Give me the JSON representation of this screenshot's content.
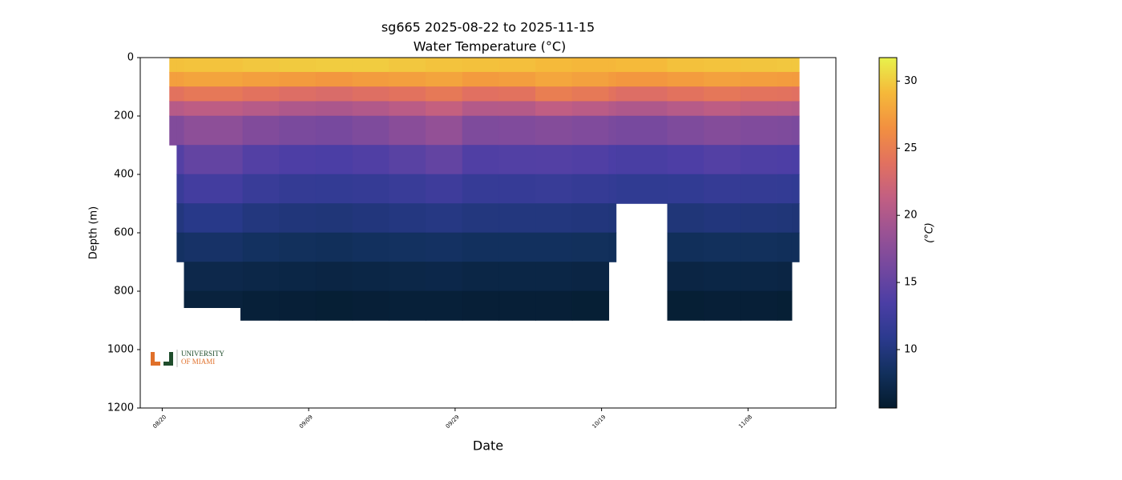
{
  "chart_data": {
    "type": "heatmap",
    "title": "sg665 2025-08-22 to 2025-11-15",
    "subtitle": "Water Temperature (°C)",
    "x_label": "Date",
    "y_label": "Depth (m)",
    "colorbar_label": "(°C)",
    "xlim": [
      "08/17",
      "11/20"
    ],
    "xticks": [
      "08/20",
      "09/09",
      "09/29",
      "10/19",
      "11/08"
    ],
    "ylim": [
      0,
      1200
    ],
    "y_inverted": true,
    "yticks": [
      0,
      200,
      400,
      600,
      800,
      1000,
      1200
    ],
    "clim": [
      5.65,
      31.75
    ],
    "cticks": [
      10,
      15,
      20,
      25,
      30
    ],
    "colormap": [
      "#041b2d",
      "#12305d",
      "#2b3a8e",
      "#4b3ea5",
      "#74489f",
      "#9a5294",
      "#c25f82",
      "#e2715f",
      "#f29040",
      "#f5b93a",
      "#e8f24c"
    ],
    "x_edges": [
      "08/21",
      "08/22",
      "08/23",
      "08/31",
      "09/05",
      "09/10",
      "09/15",
      "09/20",
      "09/25",
      "09/30",
      "10/05",
      "10/10",
      "10/15",
      "10/20",
      "10/21",
      "10/28",
      "11/02",
      "11/07",
      "11/12",
      "11/14",
      "11/15"
    ],
    "depth_edges": [
      0,
      50,
      100,
      150,
      200,
      300,
      400,
      500,
      600,
      700,
      800,
      900
    ],
    "values": [
      [
        29.5,
        27.5,
        24,
        20.5,
        17,
        null,
        null,
        null,
        null,
        null,
        null
      ],
      [
        29.5,
        27.5,
        24,
        20.5,
        17,
        14,
        12,
        10,
        8.5,
        null,
        null
      ],
      [
        29.6,
        27.8,
        24.5,
        21,
        17.8,
        15,
        12.8,
        10.6,
        8.8,
        7.3,
        6.5
      ],
      [
        29.8,
        27.5,
        24,
        20.5,
        17,
        14,
        12,
        10,
        8.4,
        7.1,
        6.3
      ],
      [
        29.9,
        27.2,
        23.5,
        20,
        16.5,
        13.6,
        11.6,
        9.8,
        8.2,
        7,
        6.2
      ],
      [
        30,
        27,
        23.2,
        19.8,
        16.3,
        13.5,
        11.5,
        9.7,
        8.1,
        6.9,
        6.1
      ],
      [
        30,
        27.3,
        23.6,
        20.2,
        16.8,
        13.8,
        11.7,
        9.9,
        8.3,
        7,
        6.2
      ],
      [
        29.8,
        27.5,
        24,
        20.8,
        17.5,
        14.4,
        12,
        10.1,
        8.4,
        7.1,
        6.3
      ],
      [
        29.6,
        27.8,
        24.6,
        21.5,
        18.2,
        15,
        12.4,
        10.3,
        8.5,
        7.2,
        6.3
      ],
      [
        29.5,
        27.2,
        23.8,
        20.3,
        16.8,
        13.8,
        11.8,
        10,
        8.3,
        7,
        6.2
      ],
      [
        29.4,
        27.4,
        24,
        20.4,
        16.9,
        13.9,
        11.8,
        10,
        8.3,
        7,
        6.2
      ],
      [
        29.2,
        27.9,
        25,
        21.2,
        17.2,
        14,
        11.9,
        10,
        8.3,
        7,
        6.2
      ],
      [
        29,
        27.6,
        24.6,
        20.8,
        16.9,
        13.8,
        11.7,
        9.9,
        8.2,
        6.9,
        6.1
      ],
      [
        29,
        27.2,
        24,
        20.3,
        16.5,
        13.5,
        11.5,
        9.8,
        8.1,
        null,
        null
      ],
      [
        29.2,
        27,
        23.5,
        20,
        16.3,
        13.3,
        11.3,
        null,
        null,
        null,
        null
      ],
      [
        29.5,
        27.3,
        24,
        20.5,
        16.8,
        13.6,
        11.4,
        9.7,
        8.1,
        6.9,
        6.1
      ],
      [
        29.6,
        27.6,
        24.4,
        21,
        17.2,
        14,
        11.7,
        9.9,
        8.2,
        7,
        6.2
      ],
      [
        29.7,
        27.4,
        24.1,
        20.6,
        16.9,
        13.7,
        11.6,
        9.8,
        8.2,
        7,
        6.2
      ],
      [
        29.8,
        27.3,
        24,
        20.5,
        16.8,
        13.6,
        11.5,
        9.7,
        8.1,
        6.9,
        6.1
      ],
      [
        29.8,
        27.2,
        23.8,
        20.3,
        16.6,
        13.5,
        11.4,
        9.6,
        8.1,
        null,
        null
      ]
    ],
    "logo": {
      "line1": "UNIVERSITY",
      "line2": "OF MIAMI"
    }
  }
}
